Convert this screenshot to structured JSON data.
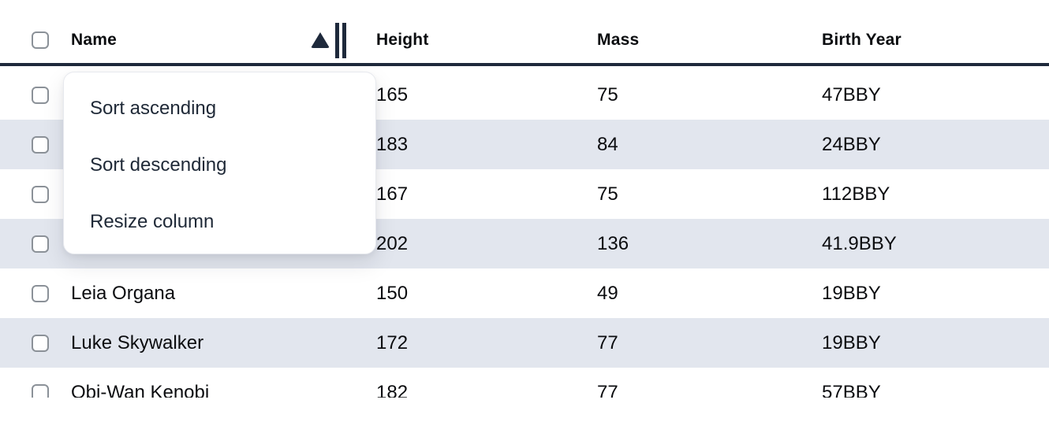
{
  "table": {
    "columns": [
      "Name",
      "Height",
      "Mass",
      "Birth Year"
    ],
    "sort": {
      "column": "Name",
      "direction": "ascending",
      "indicator": "triangle-up"
    },
    "rows": [
      {
        "name": "",
        "height": "165",
        "mass": "75",
        "birth_year": "47BBY"
      },
      {
        "name": "",
        "height": "183",
        "mass": "84",
        "birth_year": "24BBY"
      },
      {
        "name": "",
        "height": "167",
        "mass": "75",
        "birth_year": "112BBY"
      },
      {
        "name": "",
        "height": "202",
        "mass": "136",
        "birth_year": "41.9BBY"
      },
      {
        "name": "Leia Organa",
        "height": "150",
        "mass": "49",
        "birth_year": "19BBY"
      },
      {
        "name": "Luke Skywalker",
        "height": "172",
        "mass": "77",
        "birth_year": "19BBY"
      },
      {
        "name": "Obi-Wan Kenobi",
        "height": "182",
        "mass": "77",
        "birth_year": "57BBY"
      }
    ],
    "checkboxes_checked": false
  },
  "menu": {
    "items": [
      "Sort ascending",
      "Sort descending",
      "Resize column"
    ]
  },
  "colors": {
    "header_rule": "#1e293b",
    "row_stripe": "#e2e6ee",
    "cell_text": "#0b0c0f",
    "menu_text": "#1f2937",
    "checkbox_border": "#8b9198"
  }
}
